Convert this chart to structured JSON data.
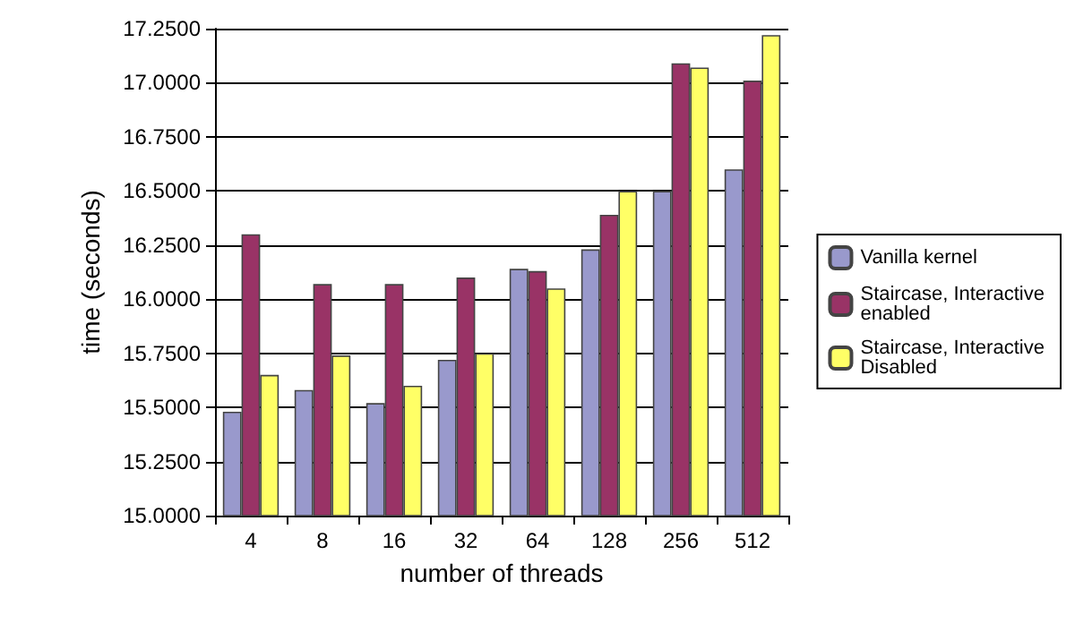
{
  "chart_data": {
    "type": "bar",
    "xlabel": "number of threads",
    "ylabel": "time (seconds)",
    "categories": [
      "4",
      "8",
      "16",
      "32",
      "64",
      "128",
      "256",
      "512"
    ],
    "series": [
      {
        "name": "Vanilla kernel",
        "color": "#9999cc",
        "values": [
          15.48,
          15.58,
          15.52,
          15.72,
          16.14,
          16.23,
          16.5,
          16.6
        ]
      },
      {
        "name": "Staircase, Interactive enabled",
        "color": "#993366",
        "values": [
          16.3,
          16.07,
          16.07,
          16.1,
          16.13,
          16.39,
          17.09,
          17.01
        ]
      },
      {
        "name": "Staircase, Interactive Disabled",
        "color": "#ffff66",
        "values": [
          15.65,
          15.74,
          15.6,
          15.75,
          16.05,
          16.5,
          17.07,
          17.22
        ]
      }
    ],
    "ylim": [
      15,
      17.25
    ],
    "yticks": [
      {
        "value": 15,
        "label": "15.0000"
      },
      {
        "value": 15.25,
        "label": "15.2500"
      },
      {
        "value": 15.5,
        "label": "15.5000"
      },
      {
        "value": 15.75,
        "label": "15.7500"
      },
      {
        "value": 16,
        "label": "16.0000"
      },
      {
        "value": 16.25,
        "label": "16.2500"
      },
      {
        "value": 16.5,
        "label": "16.5000"
      },
      {
        "value": 16.75,
        "label": "16.7500"
      },
      {
        "value": 17,
        "label": "17.0000"
      },
      {
        "value": 17.25,
        "label": "17.2500"
      }
    ],
    "grid": "y",
    "legend": "right"
  }
}
